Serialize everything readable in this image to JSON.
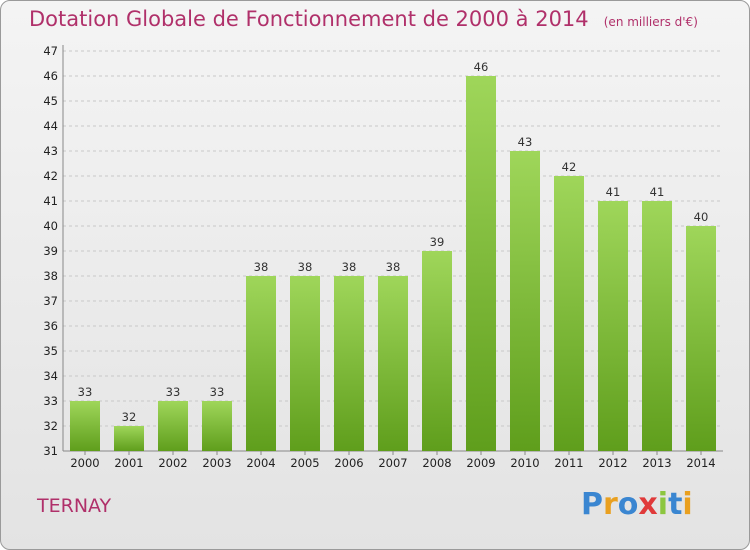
{
  "title": "Dotation Globale de Fonctionnement de 2000 à 2014",
  "unit_note": "(en milliers d'€)",
  "commune": "TERNAY",
  "brand": {
    "letters": [
      "P",
      "r",
      "o",
      "x",
      "i",
      "t",
      "i"
    ],
    "colors": [
      "#3a86d1",
      "#e9a020",
      "#3a86d1",
      "#e03a3a",
      "#8cc63f",
      "#3a86d1",
      "#e9a020"
    ]
  },
  "colors": {
    "bar_top": "#9fd65a",
    "bar_bottom": "#5f9e1c",
    "title": "#b0306a"
  },
  "chart_data": {
    "type": "bar",
    "categories": [
      "2000",
      "2001",
      "2002",
      "2003",
      "2004",
      "2005",
      "2006",
      "2007",
      "2008",
      "2009",
      "2010",
      "2011",
      "2012",
      "2013",
      "2014"
    ],
    "values": [
      33,
      32,
      33,
      33,
      38,
      38,
      38,
      38,
      39,
      46,
      43,
      42,
      41,
      41,
      40
    ],
    "ylim": [
      31,
      47
    ],
    "yticks": [
      31,
      32,
      33,
      34,
      35,
      36,
      37,
      38,
      39,
      40,
      41,
      42,
      43,
      44,
      45,
      46,
      47
    ],
    "grid": "horizontal dashed"
  }
}
